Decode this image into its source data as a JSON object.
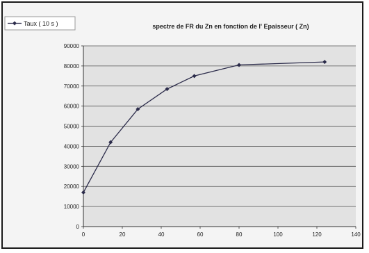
{
  "chart_data": {
    "type": "line",
    "title": "spectre de FR du Zn en fonction de l' Epaisseur ( Zn)",
    "xlabel": "",
    "ylabel": "",
    "xlim": [
      0,
      140
    ],
    "ylim": [
      0,
      90000
    ],
    "x_ticks": [
      "0",
      "20",
      "40",
      "60",
      "80",
      "100",
      "120",
      "140"
    ],
    "y_ticks": [
      "0",
      "10000",
      "20000",
      "30000",
      "40000",
      "50000",
      "60000",
      "70000",
      "80000",
      "90000"
    ],
    "grid": true,
    "legend_position": "top-left",
    "series": [
      {
        "name": "Taux ( 10 s )",
        "color": "#2b2b4a",
        "x": [
          0,
          14,
          28,
          43,
          57,
          80,
          124
        ],
        "values": [
          17000,
          42000,
          58500,
          68500,
          75000,
          80500,
          82000
        ]
      }
    ]
  }
}
